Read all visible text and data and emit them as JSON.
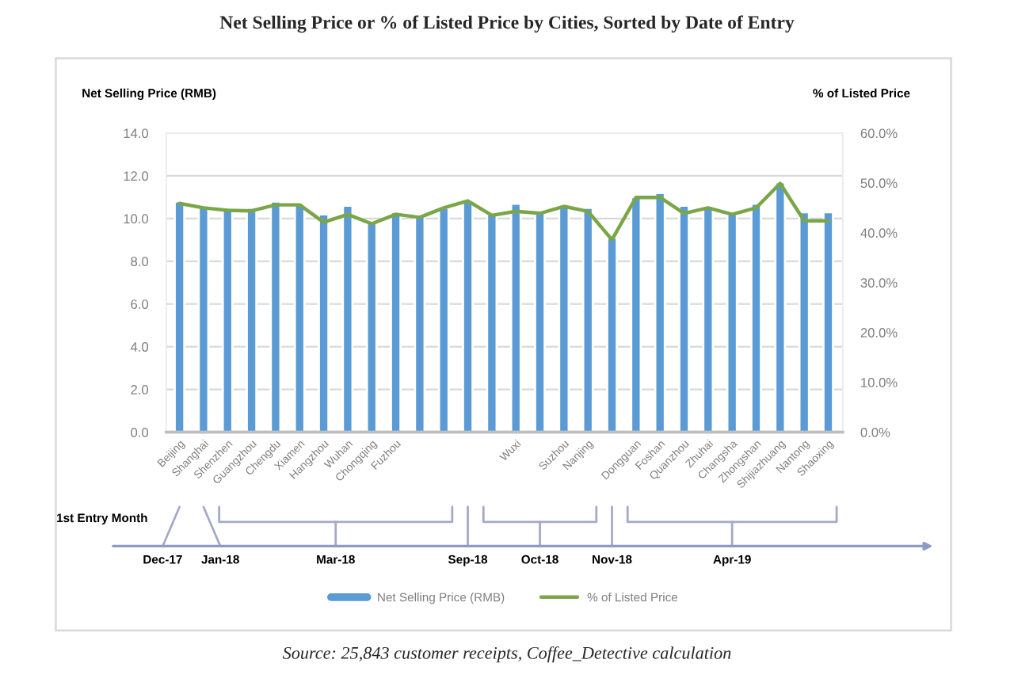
{
  "chart_data": {
    "type": "bar",
    "title": "Net Selling Price or % of Listed Price by Cities, Sorted by Date of Entry",
    "ylabel": "Net Selling Price (RMB)",
    "y2label": "% of Listed Price",
    "categories": [
      "Beijing",
      "Shanghai",
      "Shenzhen",
      "Guangzhou",
      "Chengdu",
      "Xiamen",
      "Hangzhou",
      "Wuhan",
      "Chongqing",
      "Fuzhou",
      null,
      null,
      null,
      null,
      "Wuxi",
      null,
      "Suzhou",
      "Nanjing",
      null,
      "Dongguan",
      "Foshan",
      "Quanzhou",
      "Zhuhai",
      "Changsha",
      "Zhongshan",
      "Shijiazhuang",
      "Nantong",
      "Shaoxing"
    ],
    "series": [
      {
        "name": "Net Selling Price (RMB)",
        "color": "#5b9bd5",
        "values": [
          10.8,
          10.6,
          10.5,
          10.5,
          10.8,
          10.7,
          10.2,
          10.6,
          9.9,
          10.3,
          10.1,
          10.5,
          10.8,
          10.2,
          10.7,
          10.3,
          10.6,
          10.5,
          9.1,
          11.0,
          11.2,
          10.6,
          10.6,
          10.3,
          10.7,
          11.7,
          10.3,
          10.3
        ]
      },
      {
        "name": "% of Listed Price",
        "type": "line",
        "axis": "y2",
        "color": "#7aa648",
        "values": [
          45.9,
          45.0,
          44.5,
          44.4,
          45.6,
          45.6,
          42.1,
          43.7,
          41.8,
          43.7,
          43.1,
          45.0,
          46.4,
          43.5,
          44.3,
          43.9,
          45.3,
          44.3,
          38.6,
          47.1,
          47.1,
          43.9,
          45.0,
          43.7,
          45.0,
          49.9,
          42.4,
          42.4
        ]
      }
    ],
    "ylim": [
      0,
      14
    ],
    "yticks": [
      {
        "value": 0,
        "label": "0.0"
      },
      {
        "value": 2,
        "label": "2.0"
      },
      {
        "value": 4,
        "label": "4.0"
      },
      {
        "value": 6,
        "label": "6.0"
      },
      {
        "value": 8,
        "label": "8.0"
      },
      {
        "value": 10,
        "label": "10.0"
      },
      {
        "value": 12,
        "label": "12.0"
      },
      {
        "value": 14,
        "label": "14.0"
      }
    ],
    "y2lim": [
      0,
      60
    ],
    "y2ticks": [
      {
        "value": 0,
        "label": "0.0%"
      },
      {
        "value": 10,
        "label": "10.0%"
      },
      {
        "value": 20,
        "label": "20.0%"
      },
      {
        "value": 30,
        "label": "30.0%"
      },
      {
        "value": 40,
        "label": "40.0%"
      },
      {
        "value": 50,
        "label": "50.0%"
      },
      {
        "value": 60,
        "label": "60.0%"
      }
    ],
    "annotations": [
      "1st Entry Month",
      "Dec-17",
      "Jan-18",
      "Mar-18",
      "Sep-18",
      "Oct-18",
      "Nov-18",
      "Apr-19",
      "Source: 25,843 customer receipts, Coffee_Detective calculation"
    ],
    "grid": "y",
    "legend": "bottom",
    "marker": "none",
    "line_style": "solid"
  }
}
